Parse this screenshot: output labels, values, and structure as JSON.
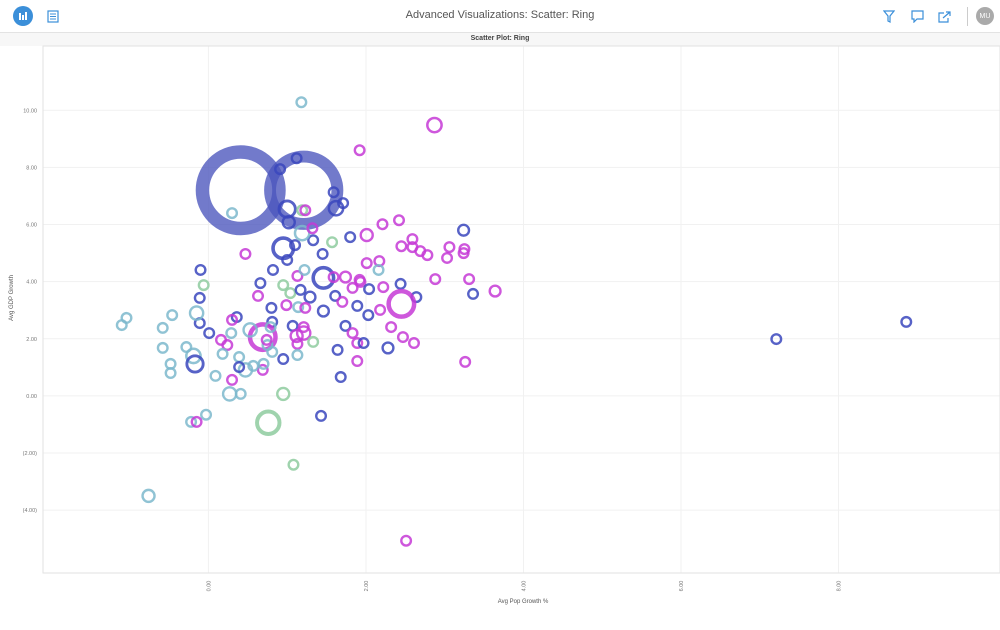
{
  "header": {
    "title": "Advanced Visualizations: Scatter: Ring",
    "user_initials": "MU",
    "icons": [
      "chart-icon",
      "list-icon",
      "filter-icon",
      "comment-icon",
      "share-icon"
    ]
  },
  "colors": {
    "accent": "#3b8fd9",
    "A": "#3a47bd",
    "B": "#c53ad6",
    "C": "#7cb9cc",
    "D": "#8ecb9f",
    "big": "#4a55bd"
  },
  "chart_data": {
    "type": "scatter",
    "subtype": "ring bubble",
    "title": "Scatter Plot: Ring",
    "xlabel": "Avg Pop Growth %",
    "ylabel": "Avg GDP Growth",
    "xlim": [
      -2.1,
      10.05
    ],
    "ylim": [
      -6.2,
      12.25
    ],
    "x_ticks": [
      {
        "v": 0,
        "label": "0.00"
      },
      {
        "v": 2,
        "label": "2.00"
      },
      {
        "v": 4,
        "label": "4.00"
      },
      {
        "v": 6,
        "label": "6.00"
      },
      {
        "v": 8,
        "label": "8.00"
      }
    ],
    "y_ticks": [
      {
        "v": 10,
        "label": "10.00"
      },
      {
        "v": 8,
        "label": "8.00"
      },
      {
        "v": 6,
        "label": "6.00"
      },
      {
        "v": 4,
        "label": "4.00"
      },
      {
        "v": 2,
        "label": "2.00"
      },
      {
        "v": 0,
        "label": "0.00"
      },
      {
        "v": -2,
        "label": "(2.00)"
      },
      {
        "v": -4,
        "label": "(4.00)"
      }
    ],
    "grid": true,
    "legend": "none",
    "points": [
      [
        0.41,
        7.2,
        "A",
        7.5
      ],
      [
        1.21,
        7.2,
        "A",
        6.6
      ],
      [
        1.18,
        10.28,
        "C",
        1
      ],
      [
        1.12,
        8.32,
        "A",
        1
      ],
      [
        0.91,
        7.94,
        "A",
        1
      ],
      [
        1.59,
        7.13,
        "A",
        1
      ],
      [
        1.71,
        6.75,
        "A",
        1
      ],
      [
        1.62,
        6.57,
        "A",
        1.4
      ],
      [
        1.0,
        6.54,
        "A",
        1.6
      ],
      [
        1.02,
        6.08,
        "A",
        1.2
      ],
      [
        0.95,
        5.17,
        "A",
        2
      ],
      [
        0.3,
        6.4,
        "C",
        1
      ],
      [
        1.1,
        5.28,
        "A",
        1
      ],
      [
        1.33,
        5.45,
        "A",
        1
      ],
      [
        1.8,
        5.56,
        "A",
        1
      ],
      [
        1.19,
        5.7,
        "C",
        1.4
      ],
      [
        1.32,
        5.87,
        "B",
        1
      ],
      [
        1.19,
        6.5,
        "D",
        1
      ],
      [
        1.23,
        6.5,
        "B",
        1
      ],
      [
        1.57,
        5.38,
        "D",
        1
      ],
      [
        1.92,
        8.6,
        "B",
        1
      ],
      [
        2.01,
        5.63,
        "B",
        1.2
      ],
      [
        2.21,
        6.01,
        "B",
        1
      ],
      [
        2.42,
        6.15,
        "B",
        1
      ],
      [
        0.47,
        4.97,
        "B",
        1
      ],
      [
        1.0,
        4.76,
        "A",
        1
      ],
      [
        1.45,
        4.97,
        "A",
        1
      ],
      [
        -0.1,
        4.41,
        "A",
        1
      ],
      [
        0.82,
        4.41,
        "A",
        1
      ],
      [
        1.13,
        4.2,
        "B",
        1
      ],
      [
        1.22,
        4.41,
        "C",
        1
      ],
      [
        1.46,
        4.13,
        "A",
        2
      ],
      [
        1.59,
        4.16,
        "B",
        1
      ],
      [
        1.74,
        4.16,
        "B",
        1.1
      ],
      [
        1.92,
        4.06,
        "B",
        1
      ],
      [
        2.01,
        4.65,
        "B",
        1
      ],
      [
        2.17,
        4.72,
        "B",
        1
      ],
      [
        2.16,
        4.41,
        "C",
        1
      ],
      [
        2.45,
        5.24,
        "B",
        1
      ],
      [
        2.59,
        5.49,
        "B",
        1
      ],
      [
        2.59,
        5.21,
        "B",
        1
      ],
      [
        2.69,
        5.07,
        "B",
        1
      ],
      [
        2.78,
        4.93,
        "B",
        1
      ],
      [
        3.06,
        5.21,
        "B",
        1
      ],
      [
        3.03,
        4.83,
        "B",
        1
      ],
      [
        3.24,
        5.8,
        "A",
        1.1
      ],
      [
        3.25,
        5.14,
        "B",
        1
      ],
      [
        3.24,
        5.0,
        "B",
        1
      ],
      [
        2.88,
        4.09,
        "B",
        1
      ],
      [
        3.31,
        4.09,
        "B",
        1
      ],
      [
        3.64,
        3.67,
        "B",
        1.1
      ],
      [
        3.36,
        3.57,
        "A",
        1
      ],
      [
        0.66,
        3.95,
        "A",
        1
      ],
      [
        0.95,
        3.88,
        "D",
        1
      ],
      [
        1.04,
        3.6,
        "D",
        1
      ],
      [
        1.17,
        3.71,
        "A",
        1
      ],
      [
        1.29,
        3.46,
        "A",
        1.1
      ],
      [
        1.61,
        3.5,
        "A",
        1
      ],
      [
        1.83,
        3.78,
        "B",
        1
      ],
      [
        1.93,
        3.99,
        "B",
        1
      ],
      [
        2.04,
        3.74,
        "A",
        1
      ],
      [
        2.22,
        3.81,
        "B",
        1
      ],
      [
        2.44,
        3.92,
        "A",
        1
      ],
      [
        2.64,
        3.46,
        "A",
        1
      ],
      [
        2.45,
        3.22,
        "B",
        2.5
      ],
      [
        1.7,
        3.29,
        "B",
        1
      ],
      [
        1.89,
        3.15,
        "A",
        1
      ],
      [
        0.63,
        3.5,
        "B",
        1
      ],
      [
        -0.11,
        3.43,
        "A",
        1
      ],
      [
        -0.06,
        3.88,
        "D",
        1
      ],
      [
        0.99,
        3.18,
        "B",
        1
      ],
      [
        1.14,
        3.11,
        "C",
        1
      ],
      [
        1.23,
        3.08,
        "B",
        1
      ],
      [
        1.46,
        2.97,
        "A",
        1.1
      ],
      [
        2.03,
        2.83,
        "A",
        1
      ],
      [
        2.18,
        3.01,
        "B",
        1
      ],
      [
        0.8,
        3.08,
        "A",
        1
      ],
      [
        0.36,
        2.76,
        "A",
        1
      ],
      [
        0.3,
        2.66,
        "B",
        1
      ],
      [
        0.81,
        2.59,
        "A",
        1
      ],
      [
        1.07,
        2.45,
        "A",
        1
      ],
      [
        1.21,
        2.41,
        "B",
        1
      ],
      [
        1.74,
        2.45,
        "A",
        1
      ],
      [
        1.83,
        2.2,
        "B",
        1
      ],
      [
        2.32,
        2.41,
        "B",
        1
      ],
      [
        1.12,
        2.1,
        "B",
        1.2
      ],
      [
        1.21,
        2.2,
        "B",
        1.3
      ],
      [
        1.33,
        1.89,
        "D",
        1
      ],
      [
        1.13,
        1.82,
        "B",
        1
      ],
      [
        1.89,
        1.85,
        "B",
        1
      ],
      [
        1.97,
        1.85,
        "A",
        1
      ],
      [
        2.28,
        1.68,
        "A",
        1.1
      ],
      [
        2.47,
        2.06,
        "B",
        1
      ],
      [
        2.61,
        1.85,
        "B",
        1
      ],
      [
        1.64,
        1.61,
        "A",
        1
      ],
      [
        0.95,
        1.29,
        "A",
        1
      ],
      [
        1.13,
        1.43,
        "C",
        1
      ],
      [
        1.89,
        1.22,
        "B",
        1
      ],
      [
        3.26,
        1.19,
        "B",
        1
      ],
      [
        1.68,
        0.66,
        "A",
        1
      ],
      [
        -0.11,
        2.55,
        "A",
        1
      ],
      [
        -0.46,
        2.83,
        "C",
        1
      ],
      [
        -0.15,
        2.9,
        "C",
        1.3
      ],
      [
        -0.58,
        2.38,
        "C",
        1
      ],
      [
        -1.1,
        2.48,
        "C",
        1
      ],
      [
        -1.04,
        2.73,
        "C",
        1
      ],
      [
        0.01,
        2.2,
        "A",
        1
      ],
      [
        0.29,
        2.2,
        "C",
        1
      ],
      [
        0.69,
        2.06,
        "B",
        2.5
      ],
      [
        0.53,
        2.31,
        "C",
        1.3
      ],
      [
        0.79,
        2.41,
        "C",
        1
      ],
      [
        0.16,
        1.96,
        "B",
        1
      ],
      [
        0.24,
        1.78,
        "B",
        1
      ],
      [
        -0.28,
        1.71,
        "C",
        1
      ],
      [
        -0.58,
        1.68,
        "C",
        1
      ],
      [
        -0.19,
        1.4,
        "C",
        1.4
      ],
      [
        -0.17,
        1.12,
        "A",
        1.6
      ],
      [
        -0.48,
        1.12,
        "C",
        1
      ],
      [
        -0.48,
        0.8,
        "C",
        1
      ],
      [
        0.39,
        1.36,
        "C",
        1
      ],
      [
        0.18,
        1.47,
        "C",
        1
      ],
      [
        0.47,
        0.91,
        "C",
        1.3
      ],
      [
        0.39,
        1.01,
        "A",
        1
      ],
      [
        0.09,
        0.7,
        "C",
        1
      ],
      [
        0.3,
        0.56,
        "B",
        1
      ],
      [
        0.69,
        0.91,
        "B",
        1
      ],
      [
        0.7,
        1.12,
        "C",
        1
      ],
      [
        0.75,
        1.78,
        "C",
        1
      ],
      [
        0.81,
        1.54,
        "C",
        1
      ],
      [
        0.74,
        1.96,
        "B",
        1
      ],
      [
        0.57,
        1.05,
        "C",
        1
      ],
      [
        0.27,
        0.07,
        "C",
        1.3
      ],
      [
        0.41,
        0.07,
        "C",
        1
      ],
      [
        0.95,
        0.07,
        "D",
        1.2
      ],
      [
        -0.03,
        -0.66,
        "C",
        1
      ],
      [
        -0.22,
        -0.91,
        "C",
        1
      ],
      [
        -0.15,
        -0.91,
        "B",
        1
      ],
      [
        0.76,
        -0.94,
        "D",
        2.2
      ],
      [
        1.43,
        -0.7,
        "A",
        1
      ],
      [
        1.08,
        -2.41,
        "D",
        1
      ],
      [
        -0.76,
        -3.5,
        "C",
        1.2
      ],
      [
        2.51,
        -5.07,
        "B",
        1
      ],
      [
        2.87,
        9.48,
        "B",
        1.4
      ],
      [
        7.21,
        1.99,
        "A",
        1
      ],
      [
        8.86,
        2.59,
        "A",
        1
      ]
    ]
  }
}
